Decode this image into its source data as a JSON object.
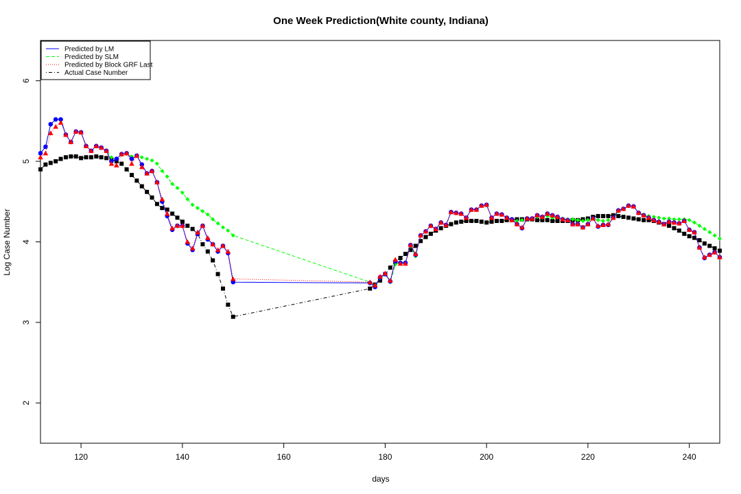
{
  "chart_data": {
    "type": "line",
    "title": "One Week Prediction(White county, Indiana)",
    "xlabel": "days",
    "ylabel": "Log Case Number",
    "xlim": [
      112,
      246
    ],
    "ylim": [
      1.5,
      6.5
    ],
    "xticks": [
      120,
      140,
      160,
      180,
      200,
      220,
      240
    ],
    "yticks": [
      2,
      3,
      4,
      5,
      6
    ],
    "grid": false,
    "legend_position": "top-left",
    "series": [
      {
        "name": "Predicted by LM",
        "color": "#0000ff",
        "line_style": "solid",
        "marker": "circle",
        "x": [
          112,
          113,
          114,
          115,
          116,
          117,
          118,
          119,
          120,
          121,
          122,
          123,
          124,
          125,
          126,
          127,
          128,
          129,
          130,
          131,
          132,
          133,
          134,
          135,
          136,
          137,
          138,
          139,
          140,
          141,
          142,
          143,
          144,
          145,
          146,
          147,
          148,
          149,
          150,
          177,
          178,
          179,
          180,
          181,
          182,
          183,
          184,
          185,
          186,
          187,
          188,
          189,
          190,
          191,
          192,
          193,
          194,
          195,
          196,
          197,
          198,
          199,
          200,
          201,
          202,
          203,
          204,
          205,
          206,
          207,
          208,
          209,
          210,
          211,
          212,
          213,
          214,
          215,
          216,
          217,
          218,
          219,
          220,
          221,
          222,
          223,
          224,
          225,
          226,
          227,
          228,
          229,
          230,
          231,
          232,
          233,
          234,
          235,
          236,
          237,
          238,
          239,
          240,
          241,
          242,
          243,
          244,
          245,
          246
        ],
        "y": [
          5.1,
          5.18,
          5.46,
          5.52,
          5.52,
          5.33,
          5.24,
          5.37,
          5.36,
          5.19,
          5.13,
          5.19,
          5.17,
          5.13,
          5.0,
          5.03,
          5.09,
          5.1,
          5.03,
          5.07,
          4.96,
          4.85,
          4.88,
          4.74,
          4.5,
          4.32,
          4.15,
          4.2,
          4.2,
          3.98,
          3.9,
          4.1,
          4.2,
          4.03,
          3.97,
          3.88,
          3.95,
          3.86,
          3.5,
          3.49,
          3.44,
          3.56,
          3.6,
          3.51,
          3.76,
          3.74,
          3.74,
          3.96,
          3.84,
          4.08,
          4.13,
          4.2,
          4.16,
          4.24,
          4.21,
          4.37,
          4.36,
          4.35,
          4.3,
          4.4,
          4.4,
          4.45,
          4.46,
          4.3,
          4.35,
          4.34,
          4.3,
          4.28,
          4.22,
          4.17,
          4.29,
          4.29,
          4.33,
          4.31,
          4.35,
          4.33,
          4.31,
          4.28,
          4.27,
          4.22,
          4.22,
          4.18,
          4.22,
          4.29,
          4.19,
          4.21,
          4.21,
          4.3,
          4.39,
          4.41,
          4.45,
          4.44,
          4.36,
          4.33,
          4.3,
          4.27,
          4.25,
          4.22,
          4.25,
          4.24,
          4.23,
          4.26,
          4.15,
          4.12,
          3.93,
          3.8,
          3.84,
          3.87,
          3.81
        ]
      },
      {
        "name": "Predicted by SLM",
        "color": "#00ff00",
        "line_style": "dashed",
        "marker": "diamond",
        "x": [
          112,
          113,
          114,
          115,
          116,
          117,
          118,
          119,
          120,
          121,
          122,
          123,
          124,
          125,
          126,
          127,
          128,
          129,
          130,
          131,
          132,
          133,
          134,
          135,
          136,
          137,
          138,
          139,
          140,
          141,
          142,
          143,
          144,
          145,
          146,
          147,
          148,
          149,
          150,
          177,
          178,
          179,
          180,
          181,
          182,
          183,
          184,
          185,
          186,
          187,
          188,
          189,
          190,
          191,
          192,
          193,
          194,
          195,
          196,
          197,
          198,
          199,
          200,
          201,
          202,
          203,
          204,
          205,
          206,
          207,
          208,
          209,
          210,
          211,
          212,
          213,
          214,
          215,
          216,
          217,
          218,
          219,
          220,
          221,
          222,
          223,
          224,
          225,
          226,
          227,
          228,
          229,
          230,
          231,
          232,
          233,
          234,
          235,
          236,
          237,
          238,
          239,
          240,
          241,
          242,
          243,
          244,
          245,
          246
        ],
        "y": [
          5.1,
          5.18,
          5.46,
          5.52,
          5.52,
          5.33,
          5.24,
          5.37,
          5.36,
          5.19,
          5.13,
          5.19,
          5.17,
          5.13,
          5.05,
          5.03,
          5.08,
          5.1,
          5.06,
          5.07,
          5.05,
          5.03,
          5.01,
          4.97,
          4.88,
          4.81,
          4.72,
          4.67,
          4.61,
          4.53,
          4.46,
          4.42,
          4.38,
          4.34,
          4.28,
          4.23,
          4.18,
          4.14,
          4.08,
          3.5,
          3.46,
          3.55,
          3.6,
          3.5,
          3.72,
          3.75,
          3.74,
          3.95,
          3.82,
          4.08,
          4.13,
          4.2,
          4.16,
          4.24,
          4.21,
          4.37,
          4.36,
          4.35,
          4.3,
          4.4,
          4.4,
          4.45,
          4.46,
          4.3,
          4.35,
          4.34,
          4.3,
          4.27,
          4.26,
          4.27,
          4.29,
          4.29,
          4.31,
          4.3,
          4.32,
          4.3,
          4.3,
          4.29,
          4.28,
          4.28,
          4.27,
          4.26,
          4.27,
          4.29,
          4.27,
          4.26,
          4.27,
          4.3,
          4.38,
          4.41,
          4.45,
          4.44,
          4.36,
          4.34,
          4.32,
          4.31,
          4.3,
          4.29,
          4.29,
          4.28,
          4.28,
          4.28,
          4.27,
          4.24,
          4.2,
          4.16,
          4.12,
          4.08,
          4.04
        ]
      },
      {
        "name": "Predicted by Block GRF Last",
        "color": "#ff0000",
        "line_style": "dotted",
        "marker": "triangle",
        "x": [
          112,
          113,
          114,
          115,
          116,
          117,
          118,
          119,
          120,
          121,
          122,
          123,
          124,
          125,
          126,
          127,
          128,
          129,
          130,
          131,
          132,
          133,
          134,
          135,
          136,
          137,
          138,
          139,
          140,
          141,
          142,
          143,
          144,
          145,
          146,
          147,
          148,
          149,
          150,
          177,
          178,
          179,
          180,
          181,
          182,
          183,
          184,
          185,
          186,
          187,
          188,
          189,
          190,
          191,
          192,
          193,
          194,
          195,
          196,
          197,
          198,
          199,
          200,
          201,
          202,
          203,
          204,
          205,
          206,
          207,
          208,
          209,
          210,
          211,
          212,
          213,
          214,
          215,
          216,
          217,
          218,
          219,
          220,
          221,
          222,
          223,
          224,
          225,
          226,
          227,
          228,
          229,
          230,
          231,
          232,
          233,
          234,
          235,
          236,
          237,
          238,
          239,
          240,
          241,
          242,
          243,
          244,
          245,
          246
        ],
        "y": [
          5.05,
          5.1,
          5.35,
          5.43,
          5.48,
          5.33,
          5.24,
          5.37,
          5.36,
          5.19,
          5.13,
          5.19,
          5.17,
          5.13,
          4.97,
          4.95,
          5.09,
          5.1,
          4.97,
          5.07,
          4.93,
          4.85,
          4.88,
          4.74,
          4.53,
          4.35,
          4.17,
          4.2,
          4.2,
          4.0,
          3.92,
          4.12,
          4.2,
          4.05,
          3.97,
          3.9,
          3.95,
          3.88,
          3.54,
          3.5,
          3.46,
          3.57,
          3.61,
          3.52,
          3.78,
          3.73,
          3.73,
          3.96,
          3.85,
          4.08,
          4.13,
          4.2,
          4.16,
          4.24,
          4.21,
          4.37,
          4.36,
          4.35,
          4.3,
          4.4,
          4.4,
          4.45,
          4.46,
          4.3,
          4.35,
          4.34,
          4.3,
          4.27,
          4.22,
          4.18,
          4.29,
          4.29,
          4.33,
          4.31,
          4.35,
          4.33,
          4.31,
          4.28,
          4.27,
          4.22,
          4.22,
          4.18,
          4.22,
          4.29,
          4.2,
          4.21,
          4.22,
          4.3,
          4.39,
          4.41,
          4.45,
          4.44,
          4.36,
          4.33,
          4.3,
          4.27,
          4.25,
          4.22,
          4.25,
          4.24,
          4.23,
          4.26,
          4.15,
          4.12,
          3.93,
          3.81,
          3.84,
          3.87,
          3.81
        ]
      },
      {
        "name": "Actual Case Number",
        "color": "#000000",
        "line_style": "dotdash",
        "marker": "square",
        "x": [
          112,
          113,
          114,
          115,
          116,
          117,
          118,
          119,
          120,
          121,
          122,
          123,
          124,
          125,
          126,
          127,
          128,
          129,
          130,
          131,
          132,
          133,
          134,
          135,
          136,
          137,
          138,
          139,
          140,
          141,
          142,
          143,
          144,
          145,
          146,
          147,
          148,
          149,
          150,
          177,
          178,
          179,
          180,
          181,
          182,
          183,
          184,
          185,
          186,
          187,
          188,
          189,
          190,
          191,
          192,
          193,
          194,
          195,
          196,
          197,
          198,
          199,
          200,
          201,
          202,
          203,
          204,
          205,
          206,
          207,
          208,
          209,
          210,
          211,
          212,
          213,
          214,
          215,
          216,
          217,
          218,
          219,
          220,
          221,
          222,
          223,
          224,
          225,
          226,
          227,
          228,
          229,
          230,
          231,
          232,
          233,
          234,
          235,
          236,
          237,
          238,
          239,
          240,
          241,
          242,
          243,
          244,
          245,
          246
        ],
        "y": [
          4.9,
          4.96,
          4.98,
          5.0,
          5.03,
          5.05,
          5.06,
          5.06,
          5.04,
          5.05,
          5.05,
          5.06,
          5.05,
          5.04,
          5.02,
          5.0,
          4.97,
          4.9,
          4.83,
          4.76,
          4.69,
          4.62,
          4.55,
          4.47,
          4.42,
          4.4,
          4.35,
          4.3,
          4.25,
          4.2,
          4.16,
          4.1,
          3.97,
          3.88,
          3.77,
          3.6,
          3.42,
          3.22,
          3.07,
          3.42,
          3.47,
          3.52,
          3.6,
          3.68,
          3.75,
          3.8,
          3.85,
          3.9,
          3.95,
          4.01,
          4.06,
          4.1,
          4.14,
          4.17,
          4.2,
          4.22,
          4.24,
          4.25,
          4.26,
          4.26,
          4.26,
          4.25,
          4.24,
          4.25,
          4.26,
          4.26,
          4.27,
          4.27,
          4.28,
          4.28,
          4.28,
          4.28,
          4.27,
          4.27,
          4.27,
          4.26,
          4.26,
          4.26,
          4.26,
          4.27,
          4.27,
          4.28,
          4.29,
          4.31,
          4.32,
          4.32,
          4.32,
          4.33,
          4.32,
          4.31,
          4.3,
          4.29,
          4.28,
          4.27,
          4.27,
          4.26,
          4.24,
          4.22,
          4.2,
          4.17,
          4.14,
          4.1,
          4.07,
          4.05,
          4.02,
          3.98,
          3.95,
          3.92,
          3.89
        ]
      }
    ]
  }
}
